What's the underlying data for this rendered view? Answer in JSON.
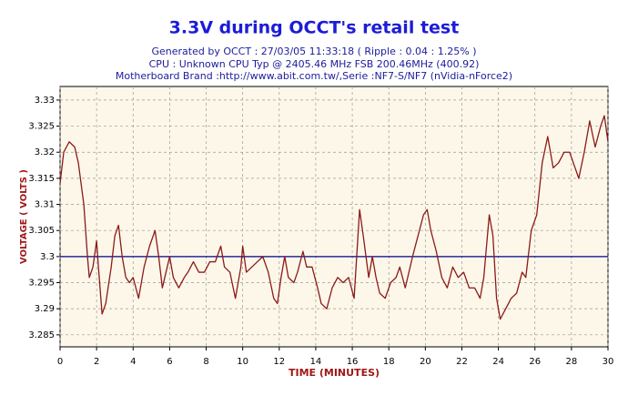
{
  "chart_data": {
    "type": "line",
    "title": "3.3V during OCCT's retail test",
    "subtitle_lines": [
      "Generated by OCCT : 27/03/05 11:33:18 ( Ripple : 0.04 : 1.25% )",
      "CPU : Unknown CPU Typ @ 2405.46 MHz FSB 200.46MHz (400.92)",
      "Motherboard Brand :http://www.abit.com.tw/,Serie :NF7-S/NF7 (nVidia-nForce2)"
    ],
    "x_label": "TIME (MINUTES)",
    "y_label": "VOLTAGE ( VOLTS )",
    "xlim": [
      0,
      30
    ],
    "xticks": [
      0,
      2,
      4,
      6,
      8,
      10,
      12,
      14,
      16,
      18,
      20,
      22,
      24,
      26,
      28,
      30
    ],
    "ylim": [
      3.2827,
      3.3326
    ],
    "yticks": [
      3.285,
      3.29,
      3.295,
      3.3,
      3.305,
      3.31,
      3.315,
      3.32,
      3.325,
      3.33
    ],
    "grid": true,
    "reference_line": 3.3,
    "reference_color": "#00008b",
    "series": [
      {
        "color": "#8b1a1a",
        "x": [
          0,
          0.2,
          0.5,
          0.8,
          1.0,
          1.3,
          1.5,
          1.6,
          1.8,
          2.0,
          2.1,
          2.3,
          2.5,
          2.8,
          3.0,
          3.2,
          3.4,
          3.6,
          3.8,
          4.0,
          4.3,
          4.6,
          4.9,
          5.2,
          5.4,
          5.6,
          5.8,
          6.0,
          6.2,
          6.5,
          6.8,
          7.0,
          7.3,
          7.6,
          7.9,
          8.2,
          8.5,
          8.8,
          9.0,
          9.3,
          9.6,
          9.9,
          10.0,
          10.2,
          10.5,
          10.8,
          11.1,
          11.4,
          11.7,
          11.9,
          12.1,
          12.3,
          12.5,
          12.8,
          13.0,
          13.3,
          13.5,
          13.8,
          14.1,
          14.3,
          14.6,
          14.9,
          15.2,
          15.5,
          15.8,
          16.1,
          16.4,
          16.6,
          16.9,
          17.1,
          17.3,
          17.5,
          17.8,
          18.1,
          18.4,
          18.6,
          18.9,
          19.3,
          19.6,
          19.9,
          20.1,
          20.3,
          20.6,
          20.9,
          21.2,
          21.5,
          21.8,
          22.1,
          22.4,
          22.7,
          23.0,
          23.2,
          23.5,
          23.7,
          23.9,
          24.1,
          24.4,
          24.7,
          25.0,
          25.3,
          25.5,
          25.8,
          26.1,
          26.4,
          26.7,
          27.0,
          27.3,
          27.6,
          27.9,
          28.1,
          28.4,
          28.7,
          29.0,
          29.3,
          29.6,
          29.8,
          30.0
        ],
        "values": [
          3.314,
          3.32,
          3.322,
          3.321,
          3.318,
          3.31,
          3.3,
          3.296,
          3.298,
          3.303,
          3.298,
          3.289,
          3.291,
          3.298,
          3.304,
          3.306,
          3.3,
          3.296,
          3.295,
          3.296,
          3.292,
          3.298,
          3.302,
          3.305,
          3.3,
          3.294,
          3.297,
          3.3,
          3.296,
          3.294,
          3.296,
          3.297,
          3.299,
          3.297,
          3.297,
          3.299,
          3.299,
          3.302,
          3.298,
          3.297,
          3.292,
          3.298,
          3.302,
          3.297,
          3.298,
          3.299,
          3.3,
          3.297,
          3.292,
          3.291,
          3.296,
          3.3,
          3.296,
          3.295,
          3.297,
          3.301,
          3.298,
          3.298,
          3.294,
          3.291,
          3.29,
          3.294,
          3.296,
          3.295,
          3.296,
          3.292,
          3.309,
          3.304,
          3.296,
          3.3,
          3.296,
          3.293,
          3.292,
          3.295,
          3.296,
          3.298,
          3.294,
          3.3,
          3.304,
          3.308,
          3.309,
          3.305,
          3.301,
          3.296,
          3.294,
          3.298,
          3.296,
          3.297,
          3.294,
          3.294,
          3.292,
          3.296,
          3.308,
          3.304,
          3.292,
          3.288,
          3.29,
          3.292,
          3.293,
          3.297,
          3.296,
          3.305,
          3.308,
          3.318,
          3.323,
          3.317,
          3.318,
          3.32,
          3.32,
          3.318,
          3.315,
          3.32,
          3.326,
          3.321,
          3.325,
          3.327,
          3.322
        ]
      }
    ]
  }
}
